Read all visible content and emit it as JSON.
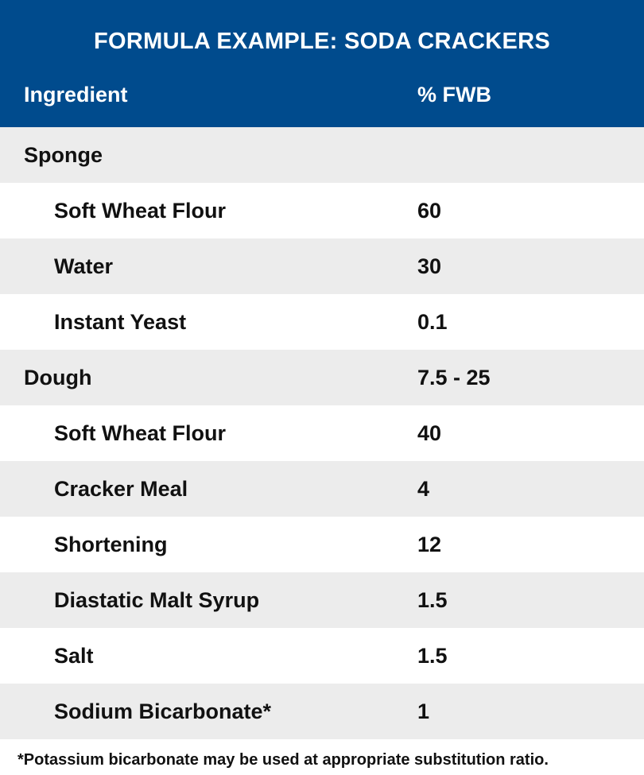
{
  "header": {
    "title": "FORMULA EXAMPLE: SODA CRACKERS",
    "col_ingredient": "Ingredient",
    "col_value": "% FWB",
    "background": "#004b8d"
  },
  "rows": [
    {
      "name": "Sponge",
      "value": "",
      "section": true
    },
    {
      "name": "Soft Wheat Flour",
      "value": "60",
      "section": false
    },
    {
      "name": "Water",
      "value": "30",
      "section": false
    },
    {
      "name": "Instant Yeast",
      "value": "0.1",
      "section": false
    },
    {
      "name": "Dough",
      "value": "7.5 - 25",
      "section": true
    },
    {
      "name": "Soft Wheat Flour",
      "value": "40",
      "section": false
    },
    {
      "name": "Cracker Meal",
      "value": "4",
      "section": false
    },
    {
      "name": "Shortening",
      "value": "12",
      "section": false
    },
    {
      "name": "Diastatic Malt Syrup",
      "value": "1.5",
      "section": false
    },
    {
      "name": "Salt",
      "value": "1.5",
      "section": false
    },
    {
      "name": "Sodium Bicarbonate*",
      "value": "1",
      "section": false
    }
  ],
  "footnote": "*Potassium bicarbonate may be used at appropriate substitution ratio."
}
